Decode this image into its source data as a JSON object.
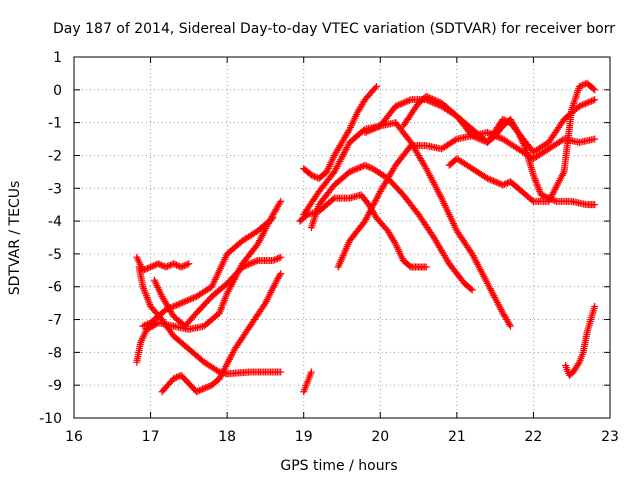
{
  "chart_data": {
    "type": "scatter",
    "title": "Day 187 of 2014, Sidereal Day-to-day VTEC variation (SDTVAR) for receiver borr",
    "xlabel": "GPS time / hours",
    "ylabel": "SDTVAR / TECUs",
    "xlim": [
      16,
      23
    ],
    "ylim": [
      -10,
      1
    ],
    "xticks": [
      16,
      17,
      18,
      19,
      20,
      21,
      22,
      23
    ],
    "yticks": [
      1,
      0,
      -1,
      -2,
      -3,
      -4,
      -5,
      -6,
      -7,
      -8,
      -9,
      -10
    ],
    "grid": true,
    "legend": "none",
    "marker": "+",
    "color": "#ff0000",
    "series": [
      {
        "name": "s1",
        "points": [
          [
            16.82,
            -5.1
          ],
          [
            16.9,
            -5.5
          ],
          [
            17.0,
            -5.4
          ],
          [
            17.1,
            -5.3
          ],
          [
            17.2,
            -5.4
          ],
          [
            17.3,
            -5.3
          ],
          [
            17.4,
            -5.4
          ],
          [
            17.5,
            -5.3
          ]
        ]
      },
      {
        "name": "s2",
        "points": [
          [
            16.82,
            -8.3
          ],
          [
            16.87,
            -7.7
          ],
          [
            16.95,
            -7.3
          ],
          [
            17.1,
            -7.1
          ],
          [
            17.3,
            -7.2
          ],
          [
            17.5,
            -7.3
          ],
          [
            17.7,
            -7.2
          ],
          [
            17.9,
            -6.8
          ],
          [
            18.0,
            -6.2
          ],
          [
            18.2,
            -5.3
          ],
          [
            18.4,
            -4.7
          ],
          [
            18.6,
            -3.8
          ],
          [
            18.7,
            -3.4
          ]
        ]
      },
      {
        "name": "s3",
        "points": [
          [
            16.85,
            -5.4
          ],
          [
            16.9,
            -6.0
          ],
          [
            17.0,
            -6.6
          ],
          [
            17.15,
            -7.0
          ],
          [
            17.3,
            -7.5
          ],
          [
            17.5,
            -7.9
          ],
          [
            17.7,
            -8.3
          ],
          [
            17.9,
            -8.6
          ],
          [
            18.0,
            -8.65
          ],
          [
            18.3,
            -8.6
          ],
          [
            18.5,
            -8.6
          ],
          [
            18.7,
            -8.6
          ]
        ]
      },
      {
        "name": "s4",
        "points": [
          [
            17.15,
            -9.2
          ],
          [
            17.3,
            -8.8
          ],
          [
            17.4,
            -8.7
          ],
          [
            17.6,
            -9.2
          ],
          [
            17.7,
            -9.1
          ],
          [
            17.8,
            -9.0
          ],
          [
            17.9,
            -8.8
          ],
          [
            18.1,
            -7.9
          ],
          [
            18.3,
            -7.2
          ],
          [
            18.5,
            -6.5
          ],
          [
            18.65,
            -5.8
          ],
          [
            18.7,
            -5.6
          ]
        ]
      },
      {
        "name": "s5",
        "points": [
          [
            16.9,
            -7.2
          ],
          [
            17.0,
            -7.1
          ],
          [
            17.2,
            -6.7
          ],
          [
            17.4,
            -6.5
          ],
          [
            17.6,
            -6.3
          ],
          [
            17.8,
            -6.0
          ],
          [
            18.0,
            -5.0
          ],
          [
            18.2,
            -4.6
          ],
          [
            18.4,
            -4.3
          ],
          [
            18.6,
            -3.9
          ]
        ]
      },
      {
        "name": "s6",
        "points": [
          [
            17.05,
            -5.8
          ],
          [
            17.15,
            -6.3
          ],
          [
            17.3,
            -6.9
          ],
          [
            17.45,
            -7.2
          ],
          [
            17.6,
            -6.8
          ],
          [
            17.8,
            -6.3
          ],
          [
            18.0,
            -5.9
          ],
          [
            18.2,
            -5.4
          ],
          [
            18.4,
            -5.2
          ],
          [
            18.6,
            -5.2
          ],
          [
            18.7,
            -5.1
          ]
        ]
      },
      {
        "name": "s7",
        "points": [
          [
            19.0,
            -9.2
          ],
          [
            19.05,
            -8.9
          ],
          [
            19.1,
            -8.6
          ]
        ]
      },
      {
        "name": "s8",
        "points": [
          [
            19.0,
            -2.4
          ],
          [
            19.1,
            -2.6
          ],
          [
            19.2,
            -2.7
          ],
          [
            19.3,
            -2.5
          ],
          [
            19.4,
            -2.0
          ],
          [
            19.5,
            -1.6
          ],
          [
            19.6,
            -1.2
          ],
          [
            19.7,
            -0.7
          ],
          [
            19.8,
            -0.3
          ],
          [
            19.95,
            0.1
          ]
        ]
      },
      {
        "name": "s9",
        "points": [
          [
            18.95,
            -4.0
          ],
          [
            19.05,
            -3.8
          ],
          [
            19.2,
            -3.7
          ],
          [
            19.4,
            -3.3
          ],
          [
            19.6,
            -3.3
          ],
          [
            19.75,
            -3.2
          ],
          [
            19.85,
            -3.5
          ],
          [
            19.95,
            -3.9
          ],
          [
            20.1,
            -4.3
          ],
          [
            20.2,
            -4.7
          ],
          [
            20.3,
            -5.2
          ],
          [
            20.4,
            -5.4
          ],
          [
            20.5,
            -5.4
          ],
          [
            20.6,
            -5.4
          ]
        ]
      },
      {
        "name": "s10",
        "points": [
          [
            19.1,
            -4.2
          ],
          [
            19.2,
            -3.5
          ],
          [
            19.4,
            -2.9
          ],
          [
            19.6,
            -2.5
          ],
          [
            19.8,
            -2.3
          ],
          [
            19.9,
            -2.4
          ],
          [
            20.1,
            -2.7
          ],
          [
            20.3,
            -3.2
          ],
          [
            20.5,
            -3.8
          ],
          [
            20.7,
            -4.5
          ],
          [
            20.9,
            -5.3
          ],
          [
            21.1,
            -5.9
          ],
          [
            21.2,
            -6.1
          ]
        ]
      },
      {
        "name": "s11",
        "points": [
          [
            19.0,
            -3.8
          ],
          [
            19.2,
            -3.1
          ],
          [
            19.4,
            -2.5
          ],
          [
            19.6,
            -1.6
          ],
          [
            19.8,
            -1.2
          ],
          [
            20.0,
            -1.1
          ],
          [
            20.2,
            -1.0
          ],
          [
            20.4,
            -1.6
          ],
          [
            20.6,
            -2.4
          ],
          [
            20.8,
            -3.3
          ],
          [
            21.0,
            -4.3
          ],
          [
            21.2,
            -5.0
          ],
          [
            21.4,
            -5.9
          ],
          [
            21.6,
            -6.8
          ],
          [
            21.7,
            -7.2
          ]
        ]
      },
      {
        "name": "s12",
        "points": [
          [
            19.45,
            -5.4
          ],
          [
            19.6,
            -4.6
          ],
          [
            19.8,
            -4.0
          ],
          [
            20.0,
            -3.1
          ],
          [
            20.2,
            -2.3
          ],
          [
            20.4,
            -1.7
          ],
          [
            20.6,
            -1.7
          ],
          [
            20.8,
            -1.8
          ],
          [
            21.0,
            -1.5
          ],
          [
            21.2,
            -1.4
          ],
          [
            21.4,
            -1.3
          ],
          [
            21.6,
            -1.5
          ],
          [
            21.8,
            -1.8
          ],
          [
            22.0,
            -2.1
          ],
          [
            22.2,
            -1.8
          ],
          [
            22.4,
            -1.5
          ],
          [
            22.6,
            -1.6
          ],
          [
            22.8,
            -1.5
          ]
        ]
      },
      {
        "name": "s13",
        "points": [
          [
            19.8,
            -1.3
          ],
          [
            20.0,
            -1.1
          ],
          [
            20.2,
            -0.5
          ],
          [
            20.4,
            -0.3
          ],
          [
            20.6,
            -0.3
          ],
          [
            20.8,
            -0.5
          ],
          [
            21.0,
            -0.8
          ],
          [
            21.2,
            -1.4
          ],
          [
            21.4,
            -1.6
          ],
          [
            21.6,
            -0.9
          ],
          [
            21.7,
            -1.0
          ],
          [
            21.8,
            -1.3
          ],
          [
            22.0,
            -1.9
          ],
          [
            22.2,
            -1.6
          ],
          [
            22.4,
            -0.9
          ],
          [
            22.6,
            -0.5
          ],
          [
            22.8,
            -0.3
          ]
        ]
      },
      {
        "name": "s14",
        "points": [
          [
            20.3,
            -1.1
          ],
          [
            20.5,
            -0.4
          ],
          [
            20.6,
            -0.2
          ],
          [
            20.8,
            -0.4
          ],
          [
            21.0,
            -0.8
          ],
          [
            21.2,
            -1.2
          ],
          [
            21.4,
            -1.6
          ],
          [
            21.5,
            -1.4
          ],
          [
            21.6,
            -1.1
          ],
          [
            21.7,
            -0.9
          ],
          [
            21.8,
            -1.3
          ],
          [
            21.9,
            -1.8
          ],
          [
            22.0,
            -2.6
          ],
          [
            22.1,
            -3.2
          ],
          [
            22.3,
            -3.4
          ],
          [
            22.5,
            -3.4
          ],
          [
            22.7,
            -3.5
          ],
          [
            22.8,
            -3.5
          ]
        ]
      },
      {
        "name": "s15",
        "points": [
          [
            20.9,
            -2.3
          ],
          [
            21.0,
            -2.1
          ],
          [
            21.2,
            -2.4
          ],
          [
            21.4,
            -2.7
          ],
          [
            21.6,
            -2.9
          ],
          [
            21.7,
            -2.8
          ],
          [
            21.8,
            -3.0
          ],
          [
            22.0,
            -3.4
          ],
          [
            22.2,
            -3.4
          ],
          [
            22.4,
            -2.5
          ],
          [
            22.5,
            -0.6
          ],
          [
            22.6,
            0.1
          ],
          [
            22.7,
            0.2
          ],
          [
            22.8,
            0.0
          ]
        ]
      },
      {
        "name": "s16",
        "points": [
          [
            22.42,
            -8.4
          ],
          [
            22.47,
            -8.7
          ],
          [
            22.52,
            -8.6
          ],
          [
            22.6,
            -8.3
          ],
          [
            22.65,
            -8.0
          ],
          [
            22.7,
            -7.4
          ],
          [
            22.8,
            -6.6
          ]
        ]
      }
    ]
  }
}
